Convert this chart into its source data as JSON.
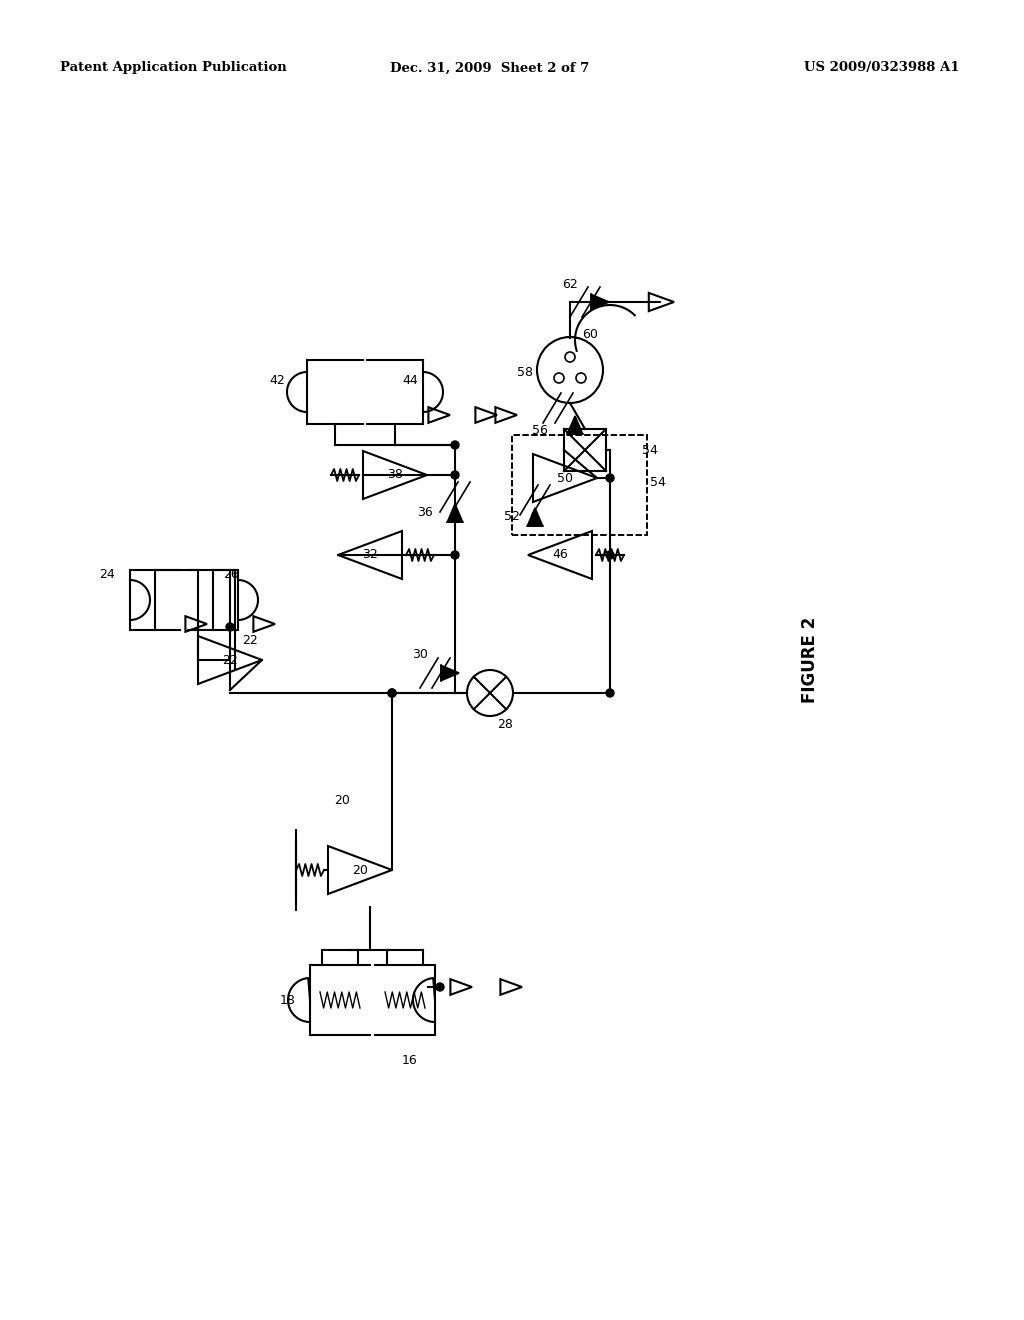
{
  "title": "FIGURE 2",
  "header_left": "Patent Application Publication",
  "header_center": "Dec. 31, 2009  Sheet 2 of 7",
  "header_right": "US 2009/0323988 A1",
  "bg_color": "#ffffff",
  "line_color": "#000000"
}
